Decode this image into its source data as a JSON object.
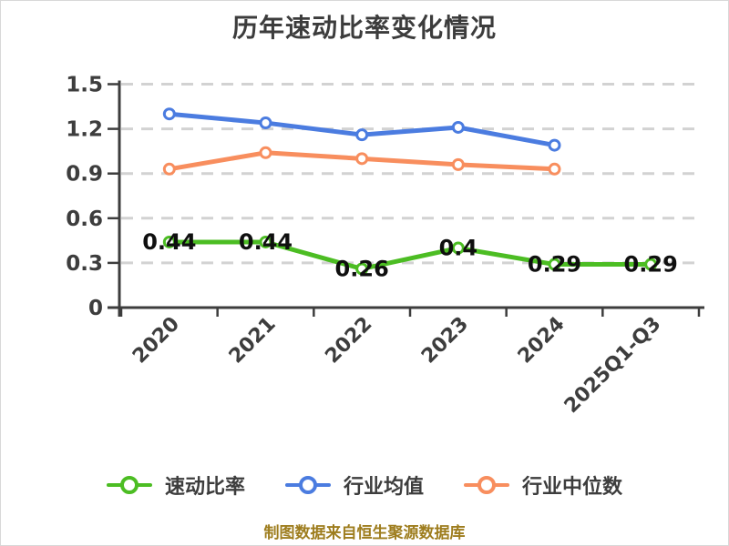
{
  "caption": "制图数据来自恒生聚源数据库",
  "chart_data": {
    "type": "line",
    "title": "历年速动比率变化情况",
    "xlabel": "",
    "ylabel": "",
    "categories": [
      "2020",
      "2021",
      "2022",
      "2023",
      "2024",
      "2025Q1-Q3"
    ],
    "ylim": [
      0,
      1.5
    ],
    "yticks": [
      0,
      0.3,
      0.6,
      0.9,
      1.2,
      1.5
    ],
    "ytick_labels": [
      "0",
      "0.3",
      "0.6",
      "0.9",
      "1.2",
      "1.5"
    ],
    "grid": "dashed-horizontal",
    "legend_position": "bottom",
    "colors": {
      "axis": "#3d3d3d",
      "grid": "#d2d2d2",
      "tick_text": "#3d3d3d",
      "data_label": "#0f0f0f"
    },
    "series": [
      {
        "key": "quick-ratio",
        "name": "速动比率",
        "color": "#4cbd23",
        "values": [
          0.44,
          0.44,
          0.26,
          0.4,
          0.29,
          0.29
        ],
        "point_labels": [
          "0.44",
          "0.44",
          "0.26",
          "0.4",
          "0.29",
          "0.29"
        ]
      },
      {
        "key": "industry-average",
        "name": "行业均值",
        "color": "#4b7ce0",
        "values": [
          1.3,
          1.24,
          1.16,
          1.21,
          1.09,
          null
        ],
        "point_labels": null
      },
      {
        "key": "industry-median",
        "name": "行业中位数",
        "color": "#f88e5e",
        "values": [
          0.93,
          1.04,
          1.0,
          0.96,
          0.93,
          null
        ],
        "point_labels": null
      }
    ]
  }
}
